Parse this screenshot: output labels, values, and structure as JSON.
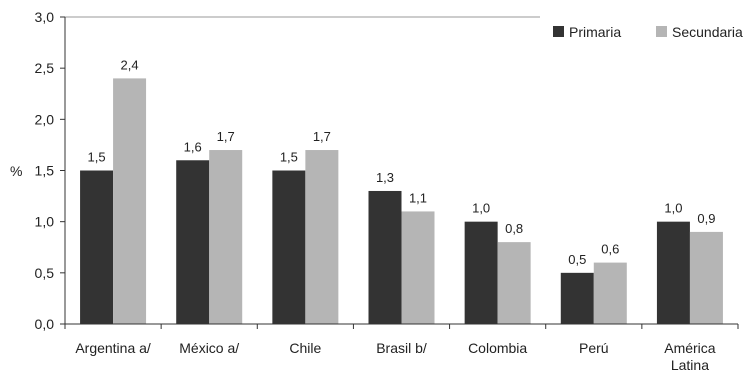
{
  "chart_data": {
    "type": "bar",
    "ylabel": "%",
    "ylim": [
      0,
      3.0
    ],
    "yticks": [
      "0,0",
      "0,5",
      "1,0",
      "1,5",
      "2,0",
      "2,5",
      "3,0"
    ],
    "categories": [
      [
        "Argentina a/"
      ],
      [
        "México a/"
      ],
      [
        "Chile"
      ],
      [
        "Brasil b/"
      ],
      [
        "Colombia"
      ],
      [
        "Perú"
      ],
      [
        "América",
        "Latina"
      ]
    ],
    "series": [
      {
        "name": "Primaria",
        "color": "#333333",
        "values": [
          1.5,
          1.6,
          1.5,
          1.3,
          1.0,
          0.5,
          1.0
        ],
        "labels": [
          "1,5",
          "1,6",
          "1,5",
          "1,3",
          "1,0",
          "0,5",
          "1,0"
        ]
      },
      {
        "name": "Secundaria",
        "color": "#b5b5b5",
        "values": [
          2.4,
          1.7,
          1.7,
          1.1,
          0.8,
          0.6,
          0.9
        ],
        "labels": [
          "2,4",
          "1,7",
          "1,7",
          "1,1",
          "0,8",
          "0,6",
          "0,9"
        ]
      }
    ],
    "legend_position": "top-right",
    "grid": "top line only"
  }
}
